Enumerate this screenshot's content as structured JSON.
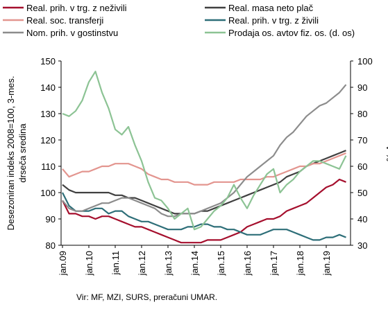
{
  "chart_data": {
    "type": "line",
    "ylabel": [
      "Desezoniran indeks 2008=100, 3-mes.",
      "drseča sredina"
    ],
    "y2label": "V %",
    "source": "Vir: MF, MZI, SURS, preračuni UMAR.",
    "categories": [
      "jan.09",
      null,
      null,
      null,
      "jan.10",
      null,
      null,
      null,
      "jan.11",
      null,
      null,
      null,
      "jan.12",
      null,
      null,
      null,
      "jan.13",
      null,
      null,
      null,
      "jan.14",
      null,
      null,
      null,
      "jan.15",
      null,
      null,
      null,
      "jan.16",
      null,
      null,
      null,
      "jan.17",
      null,
      null,
      null,
      "jan.18",
      null,
      null,
      null,
      "jan.19",
      null,
      null,
      null
    ],
    "ylim": [
      80,
      150
    ],
    "yticks": [
      80,
      90,
      100,
      110,
      120,
      130,
      140,
      150
    ],
    "y2lim": [
      30,
      100
    ],
    "y2ticks": [
      30,
      40,
      50,
      60,
      70,
      80,
      90,
      100
    ],
    "series": [
      {
        "name": "Real. prih. v trg. z neživili",
        "color": "#a50f2d",
        "values": [
          97,
          92,
          92,
          91,
          91,
          90,
          91,
          91,
          90,
          89,
          88,
          87,
          87,
          86,
          85,
          84,
          83,
          82,
          81,
          81,
          81,
          81,
          82,
          82,
          82,
          83,
          84,
          85,
          87,
          88,
          89,
          90,
          90,
          91,
          93,
          94,
          95,
          96,
          98,
          100,
          102,
          103,
          105,
          104
        ]
      },
      {
        "name": "Real. masa neto plač",
        "color": "#404040",
        "values": [
          103,
          101,
          100,
          100,
          100,
          100,
          100,
          100,
          99,
          99,
          98,
          98,
          97,
          96,
          95,
          94,
          93,
          92,
          92,
          92,
          92,
          93,
          93,
          94,
          95,
          96,
          97,
          98,
          99,
          100,
          101,
          102,
          103,
          104,
          106,
          107,
          108,
          110,
          111,
          112,
          113,
          114,
          115,
          116
        ]
      },
      {
        "name": "Real. soc. transferji",
        "color": "#e3958f",
        "values": [
          109,
          106,
          107,
          108,
          108,
          109,
          110,
          110,
          111,
          111,
          111,
          110,
          109,
          107,
          106,
          105,
          105,
          104,
          104,
          104,
          103,
          103,
          103,
          104,
          104,
          104,
          104,
          105,
          105,
          105,
          105,
          106,
          106,
          107,
          108,
          109,
          110,
          110,
          111,
          111,
          112,
          113,
          114,
          115
        ]
      },
      {
        "name": "Real. prih. v trg. z živili",
        "color": "#2d6e78",
        "values": [
          100,
          95,
          93,
          93,
          93,
          94,
          94,
          92,
          93,
          93,
          91,
          90,
          89,
          89,
          88,
          87,
          86,
          86,
          86,
          87,
          87,
          88,
          88,
          87,
          87,
          86,
          86,
          85,
          84,
          84,
          84,
          85,
          86,
          86,
          86,
          85,
          84,
          83,
          82,
          82,
          83,
          83,
          84,
          83
        ]
      },
      {
        "name": "Nom. prih. v gostinstvu",
        "color": "#8c8c8c",
        "values": [
          97,
          94,
          93,
          93,
          94,
          95,
          96,
          96,
          97,
          98,
          98,
          97,
          96,
          95,
          94,
          92,
          91,
          91,
          92,
          92,
          92,
          93,
          94,
          95,
          96,
          98,
          100,
          103,
          106,
          108,
          110,
          112,
          114,
          118,
          121,
          123,
          126,
          129,
          131,
          133,
          134,
          136,
          138,
          141
        ]
      },
      {
        "name": "Prodaja os. avtov fiz. os. (d. os)",
        "color": "#8cc394",
        "axis": "y2",
        "values": [
          80,
          79,
          81,
          85,
          92,
          96,
          88,
          82,
          74,
          72,
          75,
          68,
          62,
          54,
          48,
          47,
          44,
          40,
          42,
          44,
          36,
          37,
          40,
          43,
          45,
          48,
          53,
          48,
          44,
          49,
          53,
          57,
          59,
          50,
          53,
          55,
          58,
          60,
          62,
          62,
          61,
          60,
          59,
          64
        ]
      }
    ]
  }
}
